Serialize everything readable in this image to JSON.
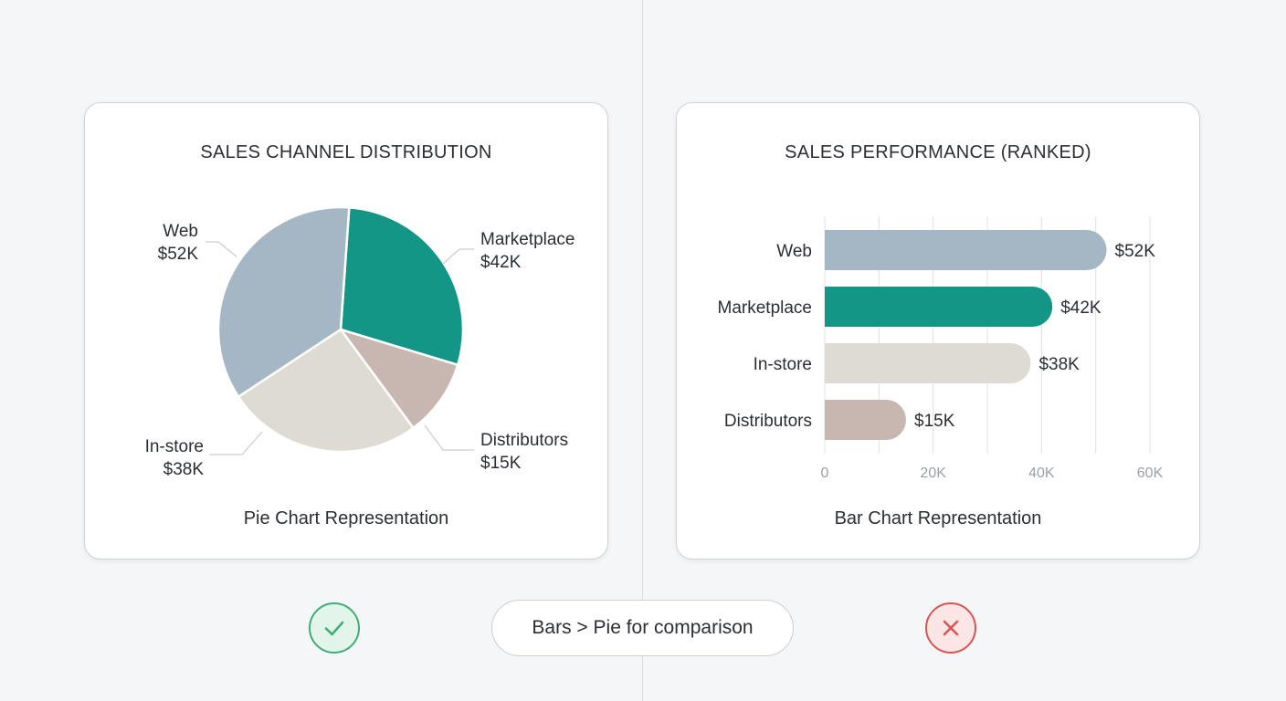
{
  "left_card": {
    "title": "SALES CHANNEL DISTRIBUTION",
    "caption": "Pie Chart Representation"
  },
  "right_card": {
    "title": "SALES PERFORMANCE (RANKED)",
    "caption": "Bar Chart Representation"
  },
  "footer": {
    "pill_text": "Bars > Pie for comparison",
    "check_icon": "check-icon",
    "cross_icon": "cross-icon"
  },
  "colors": {
    "Web": "#a5b7c5",
    "Marketplace": "#139686",
    "In-store": "#dedbd2",
    "Distributors": "#c7b7b0"
  },
  "chart_data": [
    {
      "type": "pie",
      "title": "SALES CHANNEL DISTRIBUTION",
      "categories": [
        "Web",
        "Marketplace",
        "In-store",
        "Distributors"
      ],
      "values": [
        52,
        42,
        38,
        15
      ],
      "value_labels": [
        "$52K",
        "$42K",
        "$38K",
        "$15K"
      ],
      "unit": "$K"
    },
    {
      "type": "bar",
      "orientation": "horizontal",
      "title": "SALES PERFORMANCE (RANKED)",
      "categories": [
        "Web",
        "Marketplace",
        "In-store",
        "Distributors"
      ],
      "values": [
        52,
        42,
        38,
        15
      ],
      "value_labels": [
        "$52K",
        "$42K",
        "$38K",
        "$15K"
      ],
      "xlim": [
        0,
        60
      ],
      "xticks": [
        "0",
        "20K",
        "40K",
        "60K"
      ],
      "grid": true
    }
  ]
}
